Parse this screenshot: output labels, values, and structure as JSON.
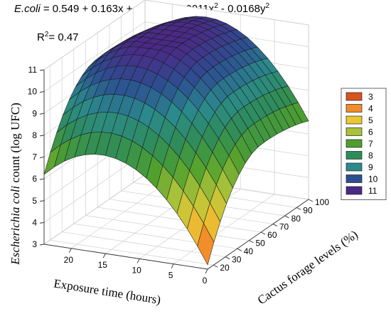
{
  "equation": {
    "lhs": "E.coli",
    "rhs_parts": [
      {
        "text": " = 0.549 + 0.163x + 0.518y - 0.0011x",
        "sup": "2"
      },
      {
        "text": " - 0.0168y",
        "sup": "2"
      }
    ],
    "r2_label": "R",
    "r2_sup": "2",
    "r2_value": "= 0.47"
  },
  "chart_data": {
    "type": "surface",
    "x_axis": {
      "label": "Exposure time (hours)",
      "ticks": [
        "0",
        "5",
        "10",
        "15",
        "20"
      ],
      "range": [
        0,
        24
      ]
    },
    "y_axis": {
      "label": "Cactus forage levels (%)",
      "ticks": [
        "20",
        "30",
        "40",
        "50",
        "60",
        "70",
        "80",
        "90",
        "100"
      ],
      "range": [
        15,
        100
      ]
    },
    "z_axis": {
      "label_italic": "Escherichia coli",
      "label_rest": " count (log UFC)",
      "ticks": [
        "3",
        "4",
        "5",
        "6",
        "7",
        "8",
        "9",
        "10",
        "11"
      ],
      "range": [
        3,
        11
      ]
    },
    "legend": {
      "position": "right",
      "entries": [
        {
          "label": "3",
          "color": "#d9531e"
        },
        {
          "label": "4",
          "color": "#f28d2a"
        },
        {
          "label": "5",
          "color": "#e9c834"
        },
        {
          "label": "6",
          "color": "#a9c23a"
        },
        {
          "label": "7",
          "color": "#4e9f2e"
        },
        {
          "label": "8",
          "color": "#2f8c5a"
        },
        {
          "label": "9",
          "color": "#2b8a8c"
        },
        {
          "label": "10",
          "color": "#2c4f91"
        },
        {
          "label": "11",
          "color": "#4a2a86"
        }
      ]
    },
    "surface_points": [
      {
        "x": 0,
        "y": 20,
        "z": 3.2
      },
      {
        "x": 12,
        "y": 60,
        "z": 11.0
      },
      {
        "x": 24,
        "y": 20,
        "z": 6.2
      },
      {
        "x": 0,
        "y": 100,
        "z": 6.6
      },
      {
        "x": 24,
        "y": 100,
        "z": 9.2
      }
    ],
    "grid": true
  }
}
